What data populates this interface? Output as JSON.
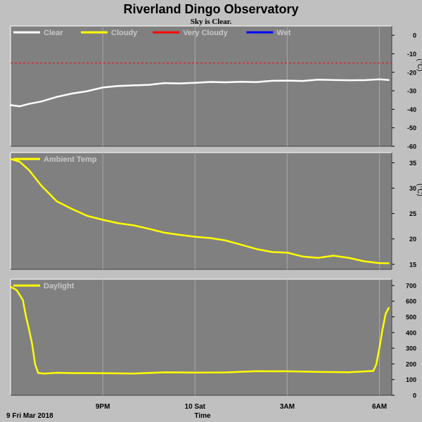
{
  "title": "Riverland Dingo Observatory",
  "subtitle": "Sky is Clear.",
  "colors": {
    "background": "#c0c0c0",
    "plot_bg": "#808080",
    "grid": "#a8a8a8",
    "clear": "#ffffff",
    "cloudy": "#ffff00",
    "very_cloudy": "#ff0000",
    "wet": "#0000ff"
  },
  "chart_data": [
    {
      "type": "line",
      "panel": "sky",
      "legend_placement": "top-left",
      "ylabel": "(°C)",
      "ylim": [
        -60,
        5
      ],
      "yticks": [
        "0",
        "-10",
        "-20",
        "-30",
        "-40",
        "-50",
        "-60"
      ],
      "ytick_values": [
        0,
        -10,
        -20,
        -30,
        -40,
        -50,
        -60
      ],
      "legend": [
        {
          "name": "Clear",
          "color": "#ffffff"
        },
        {
          "name": "Cloudy",
          "color": "#ffff00"
        },
        {
          "name": "Very Cloudy",
          "color": "#ff0000"
        },
        {
          "name": "Wet",
          "color": "#0000ff"
        }
      ],
      "thresholds": [
        {
          "name": "Very Cloudy",
          "value": -15,
          "color": "#ff0000"
        }
      ],
      "series": [
        {
          "name": "Clear",
          "color": "#ffffff",
          "x": [
            18.0,
            18.3,
            18.6,
            19.0,
            19.5,
            20.0,
            20.5,
            21.0,
            21.5,
            22.0,
            22.5,
            23.0,
            23.5,
            24.0,
            24.5,
            25.0,
            25.5,
            26.0,
            26.5,
            27.0,
            27.5,
            28.0,
            28.5,
            29.0,
            29.5,
            30.0,
            30.3
          ],
          "y": [
            -38,
            -38.5,
            -37,
            -35.5,
            -33.5,
            -31.5,
            -30,
            -28.5,
            -27.5,
            -27,
            -26.5,
            -26,
            -26,
            -25.5,
            -25.5,
            -25.5,
            -25,
            -25,
            -24.8,
            -24.5,
            -24.5,
            -24.3,
            -24.3,
            -24.2,
            -24,
            -24,
            -24.2
          ]
        }
      ]
    },
    {
      "type": "line",
      "panel": "ambient",
      "legend_placement": "top-left",
      "ylabel": "(°C)",
      "ylim": [
        14,
        37
      ],
      "yticks": [
        "35",
        "30",
        "25",
        "20",
        "15"
      ],
      "ytick_values": [
        35,
        30,
        25,
        20,
        15
      ],
      "legend": [
        {
          "name": "Ambient Temp",
          "color": "#ffff00"
        }
      ],
      "series": [
        {
          "name": "Ambient Temp",
          "color": "#ffff00",
          "x": [
            18.0,
            18.3,
            18.6,
            19.0,
            19.5,
            20.0,
            20.5,
            21.0,
            21.5,
            22.0,
            22.5,
            23.0,
            23.5,
            24.0,
            24.5,
            25.0,
            25.5,
            26.0,
            26.5,
            27.0,
            27.5,
            28.0,
            28.5,
            29.0,
            29.5,
            30.0,
            30.3
          ],
          "y": [
            35.8,
            35.3,
            33.5,
            30.5,
            27.5,
            25.8,
            24.5,
            23.8,
            23.2,
            22.6,
            22.0,
            21.3,
            20.7,
            20.4,
            20.2,
            19.8,
            18.8,
            18.0,
            17.5,
            17.2,
            16.5,
            16.3,
            16.8,
            16.2,
            15.6,
            15.3,
            15.1
          ]
        }
      ]
    },
    {
      "type": "line",
      "panel": "daylight",
      "legend_placement": "top-left",
      "ylim": [
        0,
        740
      ],
      "yticks": [
        "700",
        "600",
        "500",
        "400",
        "300",
        "200",
        "100",
        "0"
      ],
      "ytick_values": [
        700,
        600,
        500,
        400,
        300,
        200,
        100,
        0
      ],
      "legend": [
        {
          "name": "Daylight",
          "color": "#ffff00"
        }
      ],
      "series": [
        {
          "name": "Daylight",
          "color": "#ffff00",
          "x": [
            18.0,
            18.2,
            18.4,
            18.5,
            18.6,
            18.7,
            18.8,
            18.9,
            19.0,
            19.1,
            19.5,
            20.0,
            21.0,
            22.0,
            23.0,
            24.0,
            25.0,
            26.0,
            27.0,
            28.0,
            29.0,
            29.5,
            29.8,
            29.9,
            30.0,
            30.1,
            30.2,
            30.3
          ],
          "y": [
            690,
            670,
            610,
            500,
            420,
            330,
            200,
            140,
            140,
            140,
            140,
            140,
            142,
            142,
            144,
            145,
            148,
            150,
            152,
            150,
            150,
            150,
            155,
            200,
            300,
            420,
            520,
            560
          ]
        }
      ]
    }
  ],
  "x_axis": {
    "xlim": [
      18.0,
      30.4
    ],
    "ticks": [
      {
        "x": 21,
        "label": "9PM"
      },
      {
        "x": 24,
        "label": "10 Sat"
      },
      {
        "x": 27,
        "label": "3AM"
      },
      {
        "x": 30,
        "label": "6AM"
      }
    ],
    "start_label": "9 Fri Mar 2018",
    "label": "Time"
  }
}
